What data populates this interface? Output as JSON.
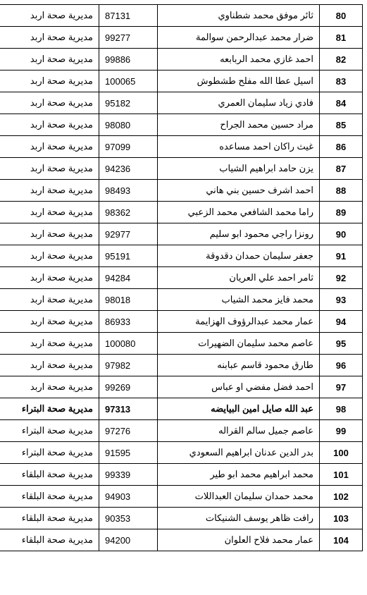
{
  "table": {
    "columns": [
      "index",
      "name",
      "code",
      "dept"
    ],
    "rows": [
      {
        "index": "80",
        "name": "ثائر موفق محمد شطناوي",
        "code": "87131",
        "dept": "مديرية صحة اربد",
        "bold": false
      },
      {
        "index": "81",
        "name": "ضرار محمد عبدالرحمن سوالمة",
        "code": "99277",
        "dept": "مديرية صحة اربد",
        "bold": false
      },
      {
        "index": "82",
        "name": "احمد غازي محمد الربابعه",
        "code": "99886",
        "dept": "مديرية صحة اربد",
        "bold": false
      },
      {
        "index": "83",
        "name": "اسيل عطا الله مفلح طشطوش",
        "code": "100065",
        "dept": "مديرية صحة اربد",
        "bold": false
      },
      {
        "index": "84",
        "name": "فادي زياد سليمان العمري",
        "code": "95182",
        "dept": "مديرية صحة اربد",
        "bold": false
      },
      {
        "index": "85",
        "name": "مراد حسين محمد الجراح",
        "code": "98080",
        "dept": "مديرية صحة اربد",
        "bold": false
      },
      {
        "index": "86",
        "name": "غيث راكان احمد مساعده",
        "code": "97099",
        "dept": "مديرية صحة اربد",
        "bold": false
      },
      {
        "index": "87",
        "name": "يزن حامد ابراهيم الشياب",
        "code": "94236",
        "dept": "مديرية صحة اربد",
        "bold": false
      },
      {
        "index": "88",
        "name": "احمد اشرف حسين بني هاني",
        "code": "98493",
        "dept": "مديرية صحة اربد",
        "bold": false
      },
      {
        "index": "89",
        "name": "راما محمد الشافعي محمد الزعبي",
        "code": "98362",
        "dept": "مديرية صحة اربد",
        "bold": false
      },
      {
        "index": "90",
        "name": "رونزا راجي محمود ابو سليم",
        "code": "92977",
        "dept": "مديرية صحة اربد",
        "bold": false
      },
      {
        "index": "91",
        "name": "جعفر سليمان حمدان دقدوقة",
        "code": "95191",
        "dept": "مديرية صحة اربد",
        "bold": false
      },
      {
        "index": "92",
        "name": "ثامر احمد علي العريان",
        "code": "94284",
        "dept": "مديرية صحة اربد",
        "bold": false
      },
      {
        "index": "93",
        "name": "محمد فايز محمد الشياب",
        "code": "98018",
        "dept": "مديرية صحة اربد",
        "bold": false
      },
      {
        "index": "94",
        "name": "عمار محمد عبدالرؤوف الهزايمة",
        "code": "86933",
        "dept": "مديرية صحة اربد",
        "bold": false
      },
      {
        "index": "95",
        "name": "عاصم محمد سليمان الضهيرات",
        "code": "100080",
        "dept": "مديرية صحة اربد",
        "bold": false
      },
      {
        "index": "96",
        "name": "طارق محمود قاسم عبابنه",
        "code": "97982",
        "dept": "مديرية صحة اربد",
        "bold": false
      },
      {
        "index": "97",
        "name": "احمد فضل مفضي او عباس",
        "code": "99269",
        "dept": "مديرية صحة اربد",
        "bold": false
      },
      {
        "index": "98",
        "name": "عبد الله صايل امين البيايضه",
        "code": "97313",
        "dept": "مديرية صحة البتراء",
        "bold": true
      },
      {
        "index": "99",
        "name": "عاصم جميل سالم القراله",
        "code": "97276",
        "dept": "مديرية صحة البتراء",
        "bold": false
      },
      {
        "index": "100",
        "name": "بدر الدين عدنان ابراهيم السعودي",
        "code": "91595",
        "dept": "مديرية صحة البتراء",
        "bold": false
      },
      {
        "index": "101",
        "name": "محمد ابراهيم محمد ابو طير",
        "code": "99339",
        "dept": "مديرية صحة البلقاء",
        "bold": false
      },
      {
        "index": "102",
        "name": "محمد حمدان سليمان العبداللات",
        "code": "94903",
        "dept": "مديرية صحة البلقاء",
        "bold": false
      },
      {
        "index": "103",
        "name": "رافت ظاهر يوسف الشنيكات",
        "code": "90353",
        "dept": "مديرية صحة البلقاء",
        "bold": false
      },
      {
        "index": "104",
        "name": "عمار محمد فلاح العلوان",
        "code": "94200",
        "dept": "مديرية صحة البلقاء",
        "bold": false
      }
    ]
  }
}
